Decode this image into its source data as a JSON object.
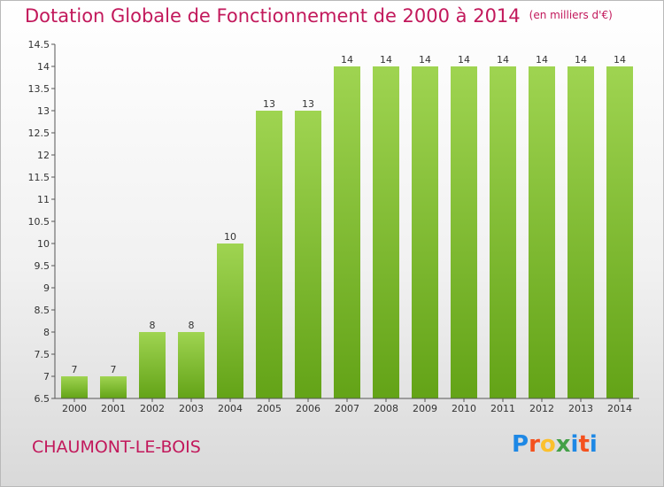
{
  "header": {
    "title": "Dotation Globale de Fonctionnement de 2000 à 2014",
    "unit": "(en milliers d'€)"
  },
  "footer": {
    "commune": "CHAUMONT-LE-BOIS",
    "logo_letters": [
      "P",
      "r",
      "o",
      "x",
      "i",
      "t",
      "i"
    ],
    "logo_colors": [
      "#1e88e5",
      "#f4511e",
      "#fbc02d",
      "#43a047",
      "#1e88e5",
      "#f4511e",
      "#1e88e5"
    ]
  },
  "colors": {
    "bar_top": "#9fd451",
    "bar_bottom": "#63a317",
    "axis": "#555555",
    "title": "#c2185b"
  },
  "chart_data": {
    "type": "bar",
    "title": "Dotation Globale de Fonctionnement de 2000 à 2014",
    "subtitle": "(en milliers d'€)",
    "xlabel": "",
    "ylabel": "",
    "categories": [
      "2000",
      "2001",
      "2002",
      "2003",
      "2004",
      "2005",
      "2006",
      "2007",
      "2008",
      "2009",
      "2010",
      "2011",
      "2012",
      "2013",
      "2014"
    ],
    "values": [
      7,
      7,
      8,
      8,
      10,
      13,
      13,
      14,
      14,
      14,
      14,
      14,
      14,
      14,
      14
    ],
    "value_labels": [
      "7",
      "7",
      "8",
      "8",
      "10",
      "13",
      "13",
      "14",
      "14",
      "14",
      "14",
      "14",
      "14",
      "14",
      "14"
    ],
    "ylim": [
      6.5,
      14.5
    ],
    "yticks": [
      6.5,
      7,
      7.5,
      8,
      8.5,
      9,
      9.5,
      10,
      10.5,
      11,
      11.5,
      12,
      12.5,
      13,
      13.5,
      14,
      14.5
    ],
    "ytick_labels": [
      "6.5",
      "7",
      "7.5",
      "8",
      "8.5",
      "9",
      "9.5",
      "10",
      "10.5",
      "11",
      "11.5",
      "12",
      "12.5",
      "13",
      "13.5",
      "14",
      "14.5"
    ],
    "grid": false,
    "legend": "none"
  }
}
